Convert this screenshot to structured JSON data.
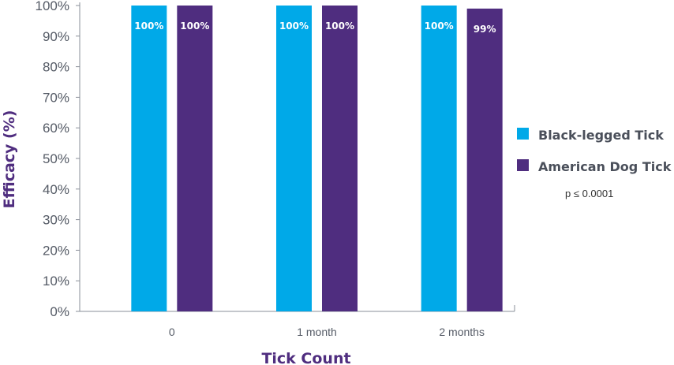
{
  "chart_data": {
    "type": "bar",
    "xlabel": "Tick Count",
    "ylabel": "Efficacy (%)",
    "ylim": [
      0,
      100
    ],
    "yticks": [
      "0%",
      "10%",
      "20%",
      "30%",
      "40%",
      "50%",
      "60%",
      "70%",
      "80%",
      "90%",
      "100%"
    ],
    "categories": [
      "0",
      "1 month",
      "2 months"
    ],
    "series": [
      {
        "name": "Black-legged Tick",
        "color": "#00a9e8",
        "values": [
          100,
          100,
          100
        ],
        "labels": [
          "100%",
          "100%",
          "100%"
        ]
      },
      {
        "name": "American Dog Tick",
        "color": "#4f2d7f",
        "values": [
          100,
          100,
          99
        ],
        "labels": [
          "100%",
          "100%",
          "99%"
        ]
      }
    ],
    "legend_position": "right",
    "annotation": "p ≤ 0.0001",
    "grid": false
  }
}
